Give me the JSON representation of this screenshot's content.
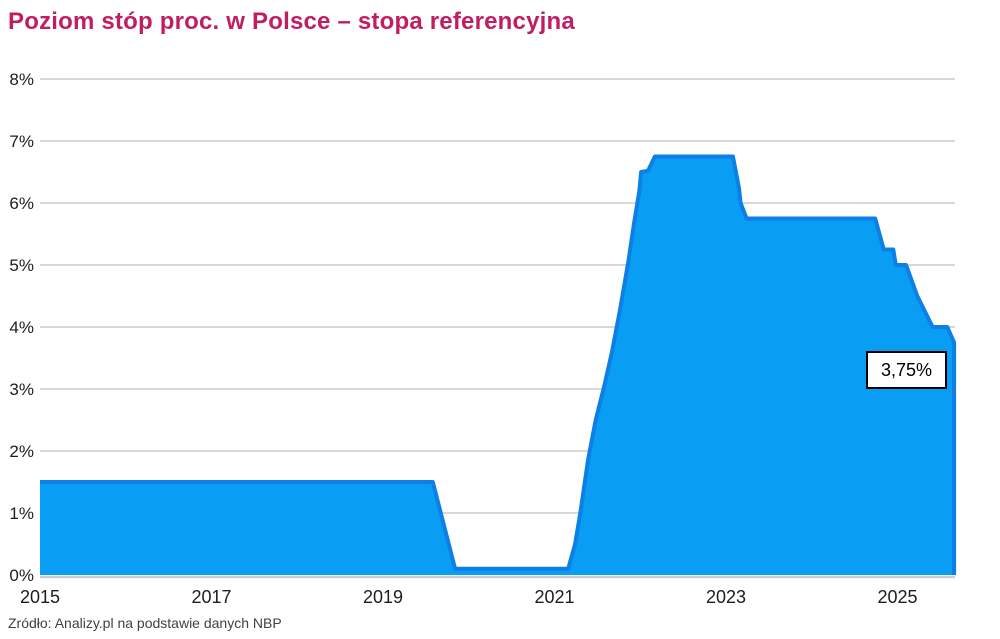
{
  "header": {
    "title": "Poziom stóp proc. w Polsce – stopa referencyjna"
  },
  "footer": {
    "source": "Zródło: Analizy.pl na podstawie danych NBP"
  },
  "chart_data": {
    "type": "area",
    "title": "Poziom stóp proc. w Polsce – stopa referencyjna",
    "xlabel": "",
    "ylabel": "",
    "xlim": [
      2015,
      2025.67
    ],
    "ylim": [
      0,
      8
    ],
    "grid": true,
    "legend_position": "none",
    "yticks": [
      {
        "value": 0,
        "label": "0%"
      },
      {
        "value": 1,
        "label": "1%"
      },
      {
        "value": 2,
        "label": "2%"
      },
      {
        "value": 3,
        "label": "3%"
      },
      {
        "value": 4,
        "label": "4%"
      },
      {
        "value": 5,
        "label": "5%"
      },
      {
        "value": 6,
        "label": "6%"
      },
      {
        "value": 7,
        "label": "7%"
      },
      {
        "value": 8,
        "label": "8%"
      }
    ],
    "xticks": [
      {
        "value": 2015,
        "label": "2015"
      },
      {
        "value": 2017,
        "label": "2017"
      },
      {
        "value": 2019,
        "label": "2019"
      },
      {
        "value": 2021,
        "label": "2021"
      },
      {
        "value": 2023,
        "label": "2023"
      },
      {
        "value": 2025,
        "label": "2025"
      }
    ],
    "series": [
      {
        "name": "stopa referencyjna NBP",
        "points": [
          [
            2015.0,
            1.5
          ],
          [
            2019.58,
            1.5
          ],
          [
            2019.84,
            0.1
          ],
          [
            2021.16,
            0.1
          ],
          [
            2021.24,
            0.5
          ],
          [
            2021.3,
            1.0
          ],
          [
            2021.39,
            1.85
          ],
          [
            2021.48,
            2.5
          ],
          [
            2021.58,
            3.05
          ],
          [
            2021.67,
            3.6
          ],
          [
            2021.76,
            4.25
          ],
          [
            2021.86,
            5.05
          ],
          [
            2021.93,
            5.7
          ],
          [
            2021.99,
            6.2
          ],
          [
            2022.01,
            6.5
          ],
          [
            2022.09,
            6.52
          ],
          [
            2022.17,
            6.75
          ],
          [
            2023.08,
            6.75
          ],
          [
            2023.15,
            6.25
          ],
          [
            2023.17,
            6.0
          ],
          [
            2023.24,
            5.75
          ],
          [
            2024.74,
            5.75
          ],
          [
            2024.84,
            5.25
          ],
          [
            2024.95,
            5.25
          ],
          [
            2024.98,
            5.0
          ],
          [
            2025.1,
            5.0
          ],
          [
            2025.23,
            4.5
          ],
          [
            2025.38,
            4.08
          ],
          [
            2025.41,
            4.0
          ],
          [
            2025.58,
            4.0
          ],
          [
            2025.66,
            3.75
          ]
        ]
      }
    ],
    "annotation": {
      "x": 2025.66,
      "y": 3.75,
      "label": "3,75%"
    },
    "colors": {
      "area_fill": "#099df3",
      "line": "#0c80e4",
      "grid": "#d8d8d8",
      "axis": "#c8ced4",
      "title": "#c11d63",
      "tick_text": "#1b1d21",
      "source_text": "#414141",
      "annotation_border": "#000000",
      "annotation_bg": "#ffffff"
    }
  }
}
